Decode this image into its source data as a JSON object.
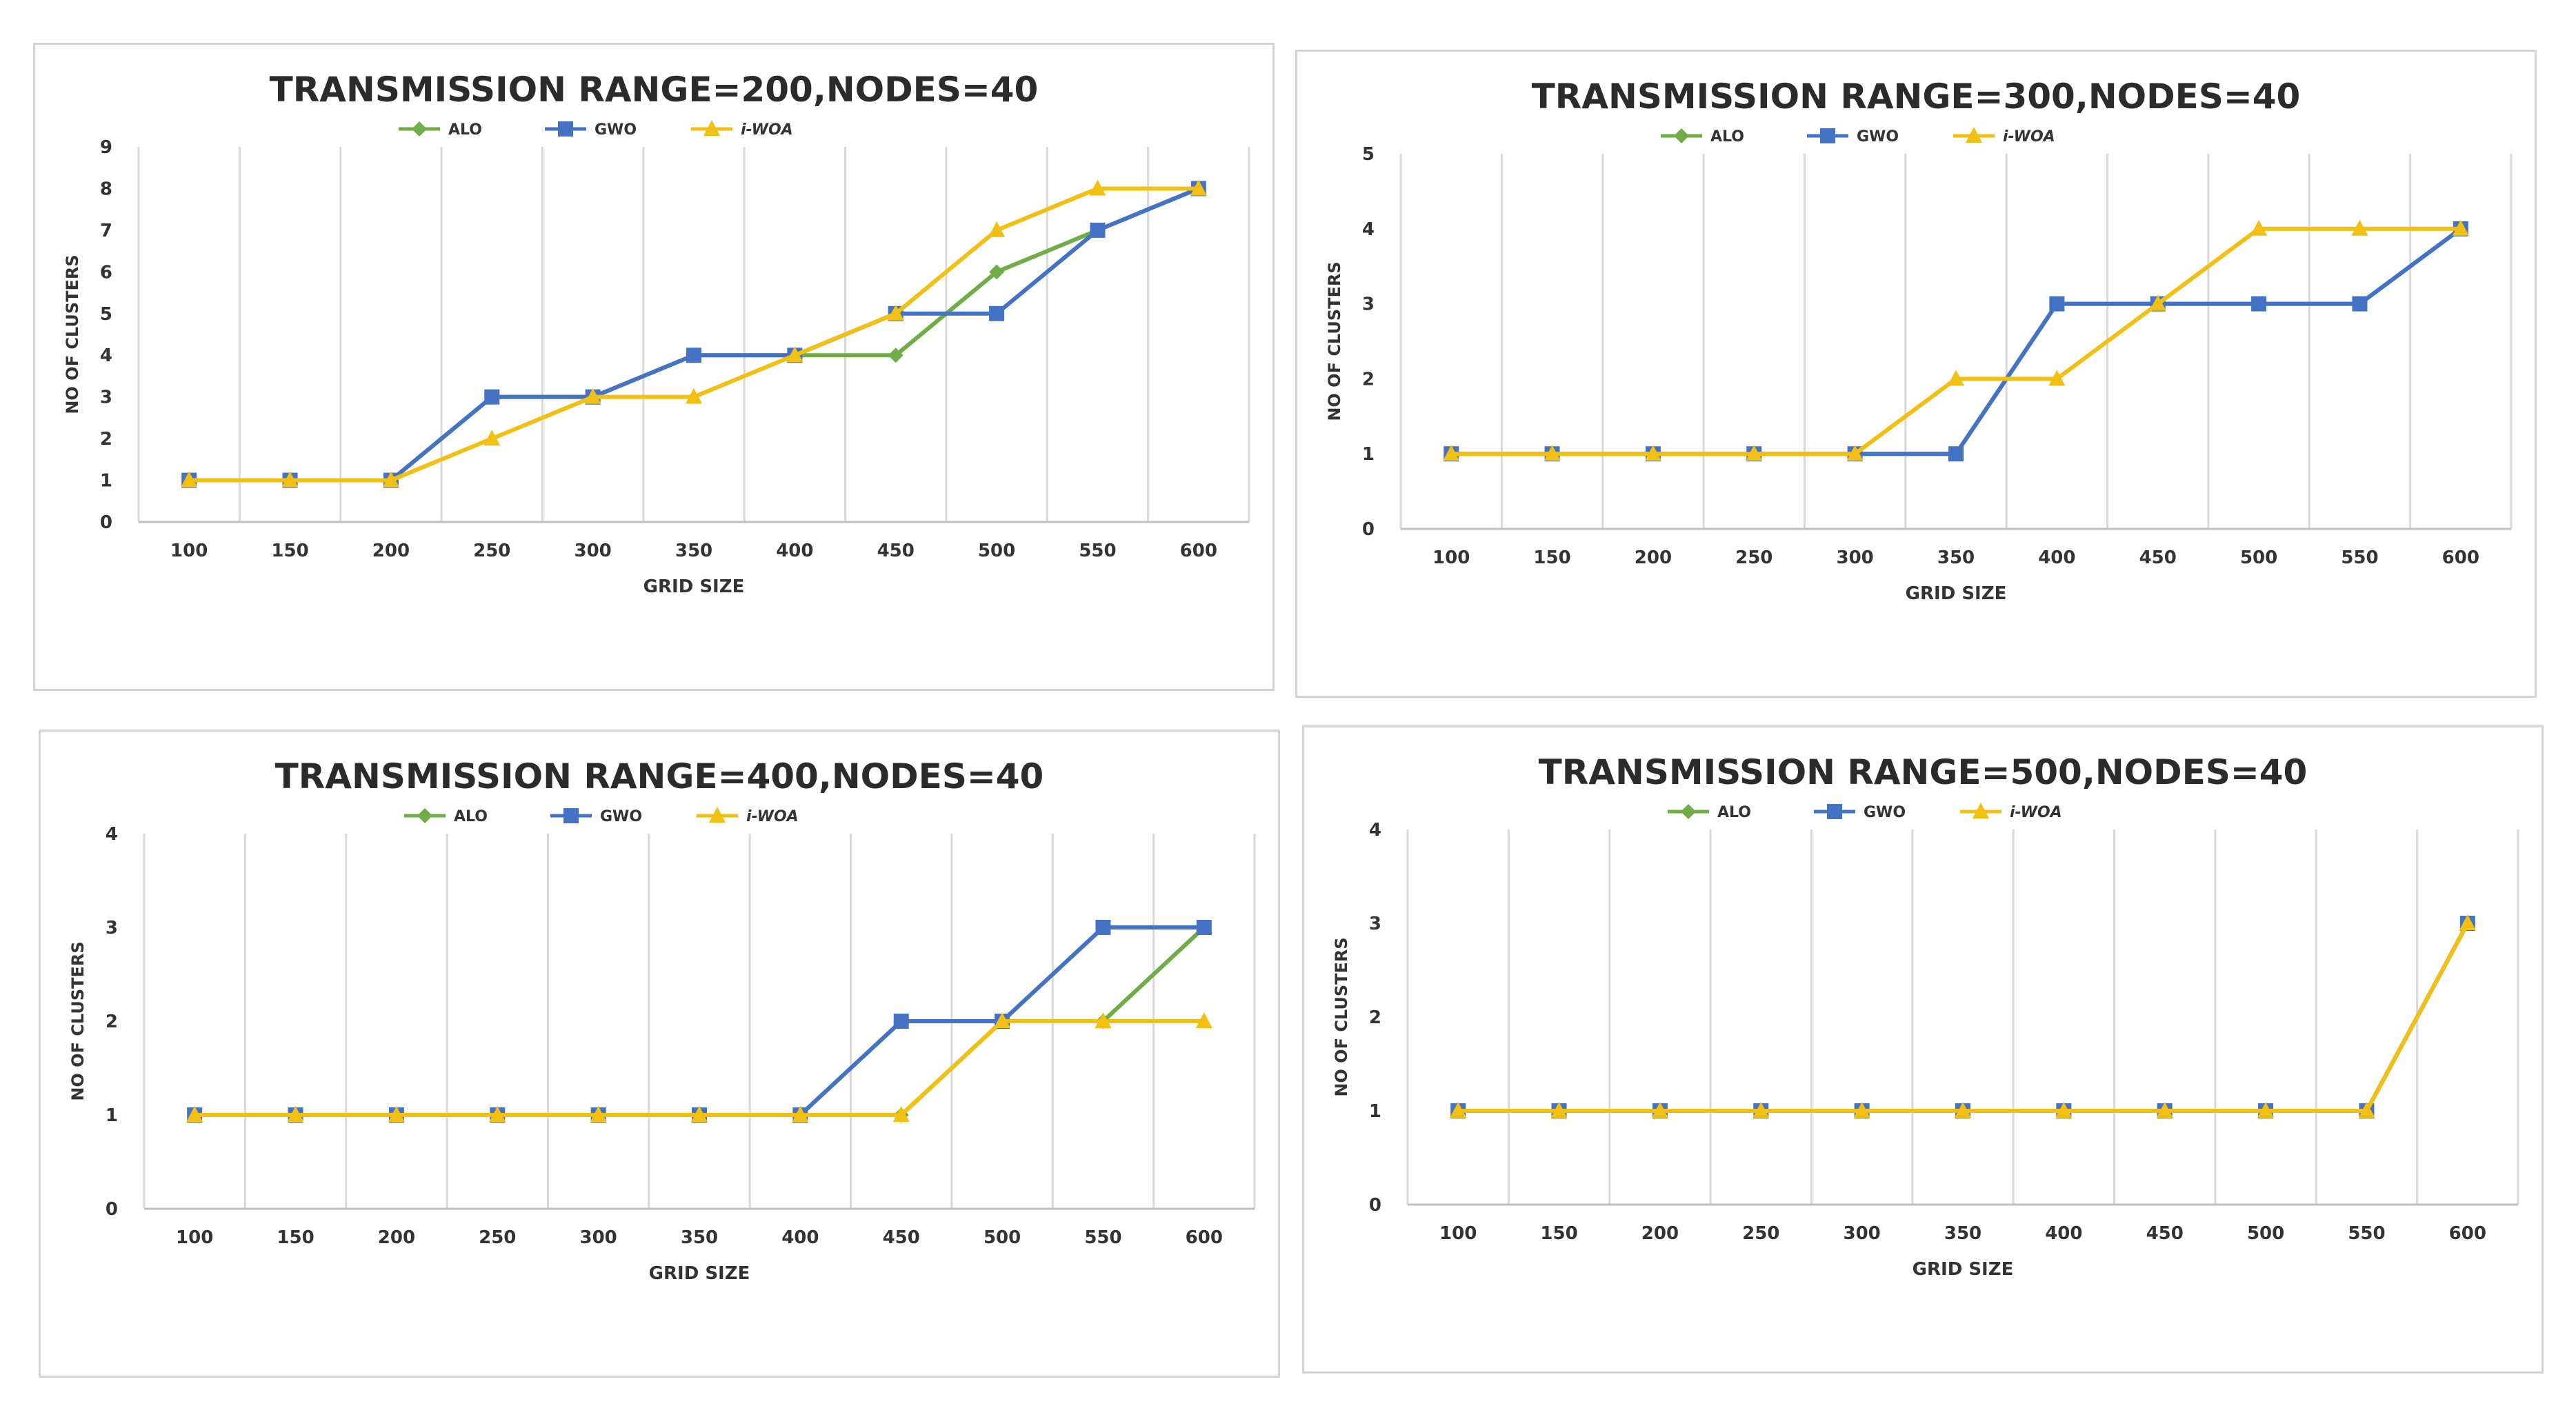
{
  "colors": {
    "ALO": "#70ad47",
    "GWO": "#4472c4",
    "i-WOA": "#f2c012",
    "grid": "#d9d9d9",
    "axis": "#bfbfbf"
  },
  "chart_data": [
    {
      "type": "line",
      "title": "TRANSMISSION RANGE=200,NODES=40",
      "xlabel": "GRID SIZE",
      "ylabel": "NO OF CLUSTERS",
      "categories": [
        "100",
        "150",
        "200",
        "250",
        "300",
        "350",
        "400",
        "450",
        "500",
        "550",
        "600"
      ],
      "ylim": [
        0,
        9
      ],
      "yticks": [
        "0",
        "1",
        "2",
        "3",
        "4",
        "5",
        "6",
        "7",
        "8",
        "9"
      ],
      "legend_position": "top-center",
      "series": [
        {
          "name": "ALO",
          "marker": "diamond",
          "values": [
            1,
            1,
            1,
            3,
            3,
            4,
            4,
            4,
            6,
            7,
            8
          ]
        },
        {
          "name": "GWO",
          "marker": "square",
          "values": [
            1,
            1,
            1,
            3,
            3,
            4,
            4,
            5,
            5,
            7,
            8
          ]
        },
        {
          "name": "i-WOA",
          "marker": "triangle",
          "values": [
            1,
            1,
            1,
            2,
            3,
            3,
            4,
            5,
            7,
            8,
            8
          ]
        }
      ]
    },
    {
      "type": "line",
      "title": "TRANSMISSION RANGE=300,NODES=40",
      "xlabel": "GRID SIZE",
      "ylabel": "NO OF CLUSTERS",
      "categories": [
        "100",
        "150",
        "200",
        "250",
        "300",
        "350",
        "400",
        "450",
        "500",
        "550",
        "600"
      ],
      "ylim": [
        0,
        5
      ],
      "yticks": [
        "0",
        "1",
        "2",
        "3",
        "4",
        "5"
      ],
      "legend_position": "top-center",
      "series": [
        {
          "name": "ALO",
          "marker": "diamond",
          "values": [
            1,
            1,
            1,
            1,
            1,
            1,
            3,
            3,
            3,
            3,
            4
          ]
        },
        {
          "name": "GWO",
          "marker": "square",
          "values": [
            1,
            1,
            1,
            1,
            1,
            1,
            3,
            3,
            3,
            3,
            4
          ]
        },
        {
          "name": "i-WOA",
          "marker": "triangle",
          "values": [
            1,
            1,
            1,
            1,
            1,
            2,
            2,
            3,
            4,
            4,
            4
          ]
        }
      ]
    },
    {
      "type": "line",
      "title": "TRANSMISSION RANGE=400,NODES=40",
      "xlabel": "GRID SIZE",
      "ylabel": "NO OF CLUSTERS",
      "categories": [
        "100",
        "150",
        "200",
        "250",
        "300",
        "350",
        "400",
        "450",
        "500",
        "550",
        "600"
      ],
      "ylim": [
        0,
        4
      ],
      "yticks": [
        "0",
        "1",
        "2",
        "3",
        "4"
      ],
      "legend_position": "top-center",
      "series": [
        {
          "name": "ALO",
          "marker": "diamond",
          "values": [
            1,
            1,
            1,
            1,
            1,
            1,
            1,
            1,
            2,
            2,
            3
          ]
        },
        {
          "name": "GWO",
          "marker": "square",
          "values": [
            1,
            1,
            1,
            1,
            1,
            1,
            1,
            2,
            2,
            3,
            3
          ]
        },
        {
          "name": "i-WOA",
          "marker": "triangle",
          "values": [
            1,
            1,
            1,
            1,
            1,
            1,
            1,
            1,
            2,
            2,
            2
          ]
        }
      ]
    },
    {
      "type": "line",
      "title": "TRANSMISSION RANGE=500,NODES=40",
      "xlabel": "GRID SIZE",
      "ylabel": "NO OF CLUSTERS",
      "categories": [
        "100",
        "150",
        "200",
        "250",
        "300",
        "350",
        "400",
        "450",
        "500",
        "550",
        "600"
      ],
      "ylim": [
        0,
        4
      ],
      "yticks": [
        "0",
        "1",
        "2",
        "3",
        "4"
      ],
      "legend_position": "top-center",
      "series": [
        {
          "name": "ALO",
          "marker": "diamond",
          "values": [
            1,
            1,
            1,
            1,
            1,
            1,
            1,
            1,
            1,
            1,
            3
          ]
        },
        {
          "name": "GWO",
          "marker": "square",
          "values": [
            1,
            1,
            1,
            1,
            1,
            1,
            1,
            1,
            1,
            1,
            3
          ]
        },
        {
          "name": "i-WOA",
          "marker": "triangle",
          "values": [
            1,
            1,
            1,
            1,
            1,
            1,
            1,
            1,
            1,
            1,
            3
          ]
        }
      ]
    }
  ]
}
